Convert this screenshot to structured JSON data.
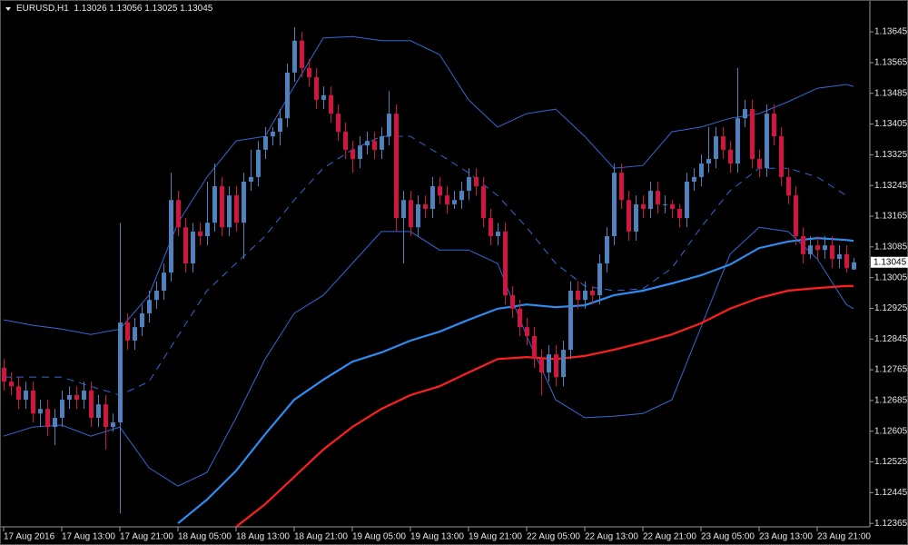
{
  "chart_data": {
    "type": "candlestick",
    "symbol": "EURUSD,H1",
    "xlim": [
      -0.5,
      119.25
    ],
    "ylim": [
      1.12356,
      1.13728
    ],
    "yticks": [
      1.13645,
      1.13565,
      1.13485,
      1.13405,
      1.13325,
      1.13245,
      1.13165,
      1.13085,
      1.13005,
      1.12925,
      1.12845,
      1.12765,
      1.12685,
      1.12605,
      1.12525,
      1.12445,
      1.12365
    ],
    "xticks": [
      {
        "value": 0,
        "label": "17 Aug 2016"
      },
      {
        "value": 8,
        "label": "17 Aug 13:00"
      },
      {
        "value": 16,
        "label": "17 Aug 21:00"
      },
      {
        "value": 24,
        "label": "18 Aug 05:00"
      },
      {
        "value": 32,
        "label": "18 Aug 13:00"
      },
      {
        "value": 40,
        "label": "18 Aug 21:00"
      },
      {
        "value": 48,
        "label": "19 Aug 05:00"
      },
      {
        "value": 56,
        "label": "19 Aug 13:00"
      },
      {
        "value": 64,
        "label": "19 Aug 21:00"
      },
      {
        "value": 72,
        "label": "22 Aug 05:00"
      },
      {
        "value": 80,
        "label": "22 Aug 13:00"
      },
      {
        "value": 88,
        "label": "22 Aug 21:00"
      },
      {
        "value": 96,
        "label": "23 Aug 05:00"
      },
      {
        "value": 104,
        "label": "23 Aug 13:00"
      },
      {
        "value": 112,
        "label": "23 Aug 21:00"
      }
    ],
    "up_color": "#4f81bd",
    "down_color": "#d0163f",
    "candles": [
      [
        1.1277,
        1.12793,
        1.12711,
        1.12734
      ],
      [
        1.12734,
        1.12758,
        1.12699,
        1.12722
      ],
      [
        1.12722,
        1.12746,
        1.12663,
        1.12687
      ],
      [
        1.12687,
        1.12734,
        1.12663,
        1.12711
      ],
      [
        1.12711,
        1.12734,
        1.12628,
        1.12651
      ],
      [
        1.12651,
        1.12687,
        1.12616,
        1.12663
      ],
      [
        1.12663,
        1.12687,
        1.12592,
        1.12616
      ],
      [
        1.12616,
        1.12663,
        1.12569,
        1.1264
      ],
      [
        1.1264,
        1.12711,
        1.12616,
        1.12687
      ],
      [
        1.12687,
        1.12722,
        1.12663,
        1.12699
      ],
      [
        1.12699,
        1.12722,
        1.12663,
        1.12687
      ],
      [
        1.12687,
        1.12734,
        1.12663,
        1.12711
      ],
      [
        1.12711,
        1.12734,
        1.12616,
        1.1264
      ],
      [
        1.1264,
        1.12699,
        1.12616,
        1.12675
      ],
      [
        1.12675,
        1.12699,
        1.12557,
        1.12616
      ],
      [
        1.12616,
        1.12651,
        1.12604,
        1.12628
      ],
      [
        1.12628,
        1.13148,
        1.12391,
        1.12888
      ],
      [
        1.12888,
        1.12912,
        1.12817,
        1.12841
      ],
      [
        1.12841,
        1.129,
        1.12817,
        1.12876
      ],
      [
        1.12876,
        1.12935,
        1.12853,
        1.12912
      ],
      [
        1.12912,
        1.12971,
        1.12888,
        1.12947
      ],
      [
        1.12947,
        1.12995,
        1.12924,
        1.12971
      ],
      [
        1.12971,
        1.13042,
        1.12947,
        1.13018
      ],
      [
        1.13018,
        1.13278,
        1.12995,
        1.13207
      ],
      [
        1.13207,
        1.13231,
        1.13113,
        1.13136
      ],
      [
        1.13136,
        1.1316,
        1.13018,
        1.13042
      ],
      [
        1.13042,
        1.13148,
        1.13018,
        1.13125
      ],
      [
        1.13125,
        1.13148,
        1.13089,
        1.13113
      ],
      [
        1.13113,
        1.13255,
        1.13089,
        1.13148
      ],
      [
        1.13148,
        1.13302,
        1.13125,
        1.13243
      ],
      [
        1.13243,
        1.13267,
        1.13113,
        1.13136
      ],
      [
        1.13136,
        1.13243,
        1.13113,
        1.13219
      ],
      [
        1.13219,
        1.13243,
        1.13125,
        1.13148
      ],
      [
        1.13148,
        1.13278,
        1.13054,
        1.13255
      ],
      [
        1.13255,
        1.13338,
        1.13231,
        1.13267
      ],
      [
        1.13267,
        1.13361,
        1.13243,
        1.13338
      ],
      [
        1.13338,
        1.13397,
        1.13314,
        1.13373
      ],
      [
        1.13373,
        1.13397,
        1.13349,
        1.13385
      ],
      [
        1.13385,
        1.13444,
        1.13349,
        1.1342
      ],
      [
        1.1342,
        1.13562,
        1.13397,
        1.13539
      ],
      [
        1.13539,
        1.13657,
        1.13515,
        1.13622
      ],
      [
        1.13622,
        1.13645,
        1.13527,
        1.13551
      ],
      [
        1.13551,
        1.13574,
        1.13503,
        1.13527
      ],
      [
        1.13527,
        1.13551,
        1.13444,
        1.13468
      ],
      [
        1.13468,
        1.13503,
        1.13444,
        1.1348
      ],
      [
        1.1348,
        1.13503,
        1.13409,
        1.13432
      ],
      [
        1.13432,
        1.13456,
        1.13361,
        1.13385
      ],
      [
        1.13385,
        1.13409,
        1.13314,
        1.13338
      ],
      [
        1.13338,
        1.13361,
        1.13278,
        1.13314
      ],
      [
        1.13314,
        1.13373,
        1.1329,
        1.13349
      ],
      [
        1.13349,
        1.13385,
        1.13326,
        1.13361
      ],
      [
        1.13361,
        1.13385,
        1.13314,
        1.13338
      ],
      [
        1.13338,
        1.13397,
        1.13314,
        1.13373
      ],
      [
        1.13373,
        1.13491,
        1.13349,
        1.13432
      ],
      [
        1.13432,
        1.13456,
        1.13125,
        1.1316
      ],
      [
        1.1316,
        1.13231,
        1.13042,
        1.13207
      ],
      [
        1.13207,
        1.13231,
        1.13113,
        1.13136
      ],
      [
        1.13136,
        1.13219,
        1.13113,
        1.13196
      ],
      [
        1.13196,
        1.13219,
        1.1316,
        1.13184
      ],
      [
        1.13184,
        1.13267,
        1.1316,
        1.13243
      ],
      [
        1.13243,
        1.13267,
        1.13196,
        1.13219
      ],
      [
        1.13219,
        1.13243,
        1.13172,
        1.13196
      ],
      [
        1.13196,
        1.13231,
        1.13184,
        1.13207
      ],
      [
        1.13207,
        1.13255,
        1.13184,
        1.13231
      ],
      [
        1.13231,
        1.1329,
        1.13207,
        1.13267
      ],
      [
        1.13267,
        1.1329,
        1.13219,
        1.13243
      ],
      [
        1.13243,
        1.13267,
        1.13136,
        1.1316
      ],
      [
        1.1316,
        1.13184,
        1.13089,
        1.13113
      ],
      [
        1.13113,
        1.13148,
        1.13089,
        1.13125
      ],
      [
        1.13125,
        1.13148,
        1.12935,
        1.12959
      ],
      [
        1.12959,
        1.12983,
        1.129,
        1.12924
      ],
      [
        1.12924,
        1.12947,
        1.12853,
        1.12876
      ],
      [
        1.12876,
        1.129,
        1.12829,
        1.12853
      ],
      [
        1.12853,
        1.12876,
        1.1277,
        1.12793
      ],
      [
        1.12793,
        1.12817,
        1.12699,
        1.12758
      ],
      [
        1.12758,
        1.12829,
        1.12734,
        1.12805
      ],
      [
        1.12805,
        1.12829,
        1.12722,
        1.12746
      ],
      [
        1.12746,
        1.12841,
        1.12722,
        1.12817
      ],
      [
        1.12817,
        1.12995,
        1.12793,
        1.12971
      ],
      [
        1.12971,
        1.12995,
        1.12924,
        1.12947
      ],
      [
        1.12947,
        1.12995,
        1.12924,
        1.12971
      ],
      [
        1.12971,
        1.12983,
        1.12935,
        1.12959
      ],
      [
        1.12959,
        1.13066,
        1.12935,
        1.13042
      ],
      [
        1.13042,
        1.13136,
        1.13018,
        1.13113
      ],
      [
        1.13113,
        1.13302,
        1.13089,
        1.13278
      ],
      [
        1.13278,
        1.13302,
        1.13184,
        1.13207
      ],
      [
        1.13207,
        1.13231,
        1.13101,
        1.13125
      ],
      [
        1.13125,
        1.13219,
        1.13101,
        1.13196
      ],
      [
        1.13196,
        1.13219,
        1.1316,
        1.13184
      ],
      [
        1.13184,
        1.13255,
        1.1316,
        1.13231
      ],
      [
        1.13231,
        1.13255,
        1.13172,
        1.13196
      ],
      [
        1.13196,
        1.13219,
        1.13172,
        1.13196
      ],
      [
        1.13196,
        1.13207,
        1.1316,
        1.13184
      ],
      [
        1.13184,
        1.13196,
        1.13136,
        1.1316
      ],
      [
        1.1316,
        1.13278,
        1.13136,
        1.13255
      ],
      [
        1.13255,
        1.1329,
        1.13231,
        1.13267
      ],
      [
        1.13267,
        1.13326,
        1.13243,
        1.13302
      ],
      [
        1.13302,
        1.13397,
        1.13278,
        1.13314
      ],
      [
        1.13314,
        1.13397,
        1.1329,
        1.13373
      ],
      [
        1.13373,
        1.13397,
        1.13314,
        1.13338
      ],
      [
        1.13338,
        1.13361,
        1.13278,
        1.13302
      ],
      [
        1.13302,
        1.13551,
        1.13278,
        1.1342
      ],
      [
        1.1342,
        1.13468,
        1.13397,
        1.13444
      ],
      [
        1.13444,
        1.13468,
        1.1329,
        1.13314
      ],
      [
        1.13314,
        1.13338,
        1.13267,
        1.1329
      ],
      [
        1.1329,
        1.13456,
        1.13267,
        1.13432
      ],
      [
        1.13432,
        1.13456,
        1.13349,
        1.13373
      ],
      [
        1.13373,
        1.13397,
        1.13243,
        1.13267
      ],
      [
        1.13267,
        1.1329,
        1.13196,
        1.13219
      ],
      [
        1.13219,
        1.13243,
        1.13089,
        1.13113
      ],
      [
        1.13113,
        1.13136,
        1.13042,
        1.13066
      ],
      [
        1.13066,
        1.13113,
        1.13054,
        1.13089
      ],
      [
        1.13089,
        1.13113,
        1.13054,
        1.13077
      ],
      [
        1.13077,
        1.13113,
        1.13054,
        1.13089
      ],
      [
        1.13089,
        1.13113,
        1.1303,
        1.13054
      ],
      [
        1.13054,
        1.13089,
        1.1303,
        1.13066
      ],
      [
        1.13066,
        1.13089,
        1.13018,
        1.1303
      ],
      [
        1.13026,
        1.13056,
        1.13025,
        1.13045
      ]
    ],
    "series": [
      {
        "color": "#3568d4",
        "width": 1,
        "x": [
          0,
          4,
          8,
          12,
          16,
          20,
          24,
          28,
          32,
          36,
          40,
          44,
          48,
          52,
          56,
          60,
          64,
          68,
          72,
          76,
          80,
          84,
          88,
          92,
          96,
          100,
          104,
          108,
          112,
          116,
          117
        ],
        "values": [
          1.12895,
          1.12881,
          1.12871,
          1.12857,
          1.12871,
          1.12959,
          1.13148,
          1.13267,
          1.13361,
          1.13373,
          1.13503,
          1.13629,
          1.13633,
          1.13622,
          1.13622,
          1.13586,
          1.13468,
          1.13397,
          1.13432,
          1.13444,
          1.13373,
          1.1329,
          1.13297,
          1.13385,
          1.13397,
          1.1342,
          1.13432,
          1.13463,
          1.13498,
          1.13508,
          1.13503
        ]
      },
      {
        "color": "#3568d4",
        "width": 1,
        "x": [
          0,
          4,
          8,
          12,
          16,
          20,
          24,
          28,
          32,
          36,
          40,
          44,
          48,
          52,
          56,
          60,
          64,
          68,
          72,
          76,
          80,
          84,
          88,
          92,
          96,
          100,
          104,
          108,
          112,
          116,
          117
        ],
        "values": [
          1.12592,
          1.12616,
          1.12621,
          1.12592,
          1.12616,
          1.1251,
          1.12462,
          1.12498,
          1.1264,
          1.12793,
          1.12912,
          1.12959,
          1.13042,
          1.13125,
          1.13125,
          1.13077,
          1.13077,
          1.13042,
          1.12853,
          1.12687,
          1.1264,
          1.12644,
          1.12651,
          1.12687,
          1.12876,
          1.13066,
          1.13136,
          1.13125,
          1.13054,
          1.12935,
          1.12924
        ]
      },
      {
        "color": "#3568d4",
        "width": 1,
        "dash": "8 6",
        "x": [
          0,
          4,
          8,
          12,
          16,
          20,
          24,
          28,
          32,
          36,
          40,
          44,
          48,
          52,
          56,
          60,
          64,
          68,
          72,
          76,
          80,
          84,
          88,
          92,
          96,
          100,
          104,
          108,
          112,
          116
        ],
        "values": [
          1.12746,
          1.12746,
          1.12746,
          1.12722,
          1.12699,
          1.12734,
          1.12853,
          1.12971,
          1.13042,
          1.13113,
          1.13207,
          1.1329,
          1.13338,
          1.13373,
          1.13373,
          1.13326,
          1.13278,
          1.13219,
          1.13136,
          1.13042,
          1.12983,
          1.12971,
          1.12976,
          1.1303,
          1.13136,
          1.13231,
          1.1329,
          1.1329,
          1.13267,
          1.13219
        ]
      },
      {
        "color": "#2f8cf0",
        "width": 2.2,
        "x": [
          24,
          28,
          32,
          36,
          40,
          44,
          48,
          52,
          56,
          60,
          64,
          68,
          72,
          76,
          80,
          84,
          88,
          92,
          96,
          100,
          104,
          108,
          112,
          116,
          117
        ],
        "values": [
          1.12365,
          1.12427,
          1.12502,
          1.12597,
          1.12687,
          1.12739,
          1.12786,
          1.1281,
          1.12841,
          1.12864,
          1.12895,
          1.12924,
          1.12935,
          1.12928,
          1.12933,
          1.12959,
          1.12971,
          1.1299,
          1.13011,
          1.13039,
          1.13082,
          1.13099,
          1.13108,
          1.13103,
          1.13101
        ]
      },
      {
        "color": "#ff1f1f",
        "width": 2.2,
        "x": [
          32,
          36,
          40,
          44,
          48,
          52,
          56,
          60,
          64,
          68,
          72,
          76,
          80,
          84,
          88,
          92,
          96,
          100,
          104,
          108,
          112,
          116,
          117
        ],
        "values": [
          1.12356,
          1.12415,
          1.12486,
          1.12557,
          1.12616,
          1.12663,
          1.12699,
          1.12722,
          1.12758,
          1.12793,
          1.12798,
          1.12793,
          1.12801,
          1.12817,
          1.12836,
          1.12857,
          1.12886,
          1.12924,
          1.12952,
          1.12971,
          1.12978,
          1.12983,
          1.12983
        ]
      }
    ]
  }
}
